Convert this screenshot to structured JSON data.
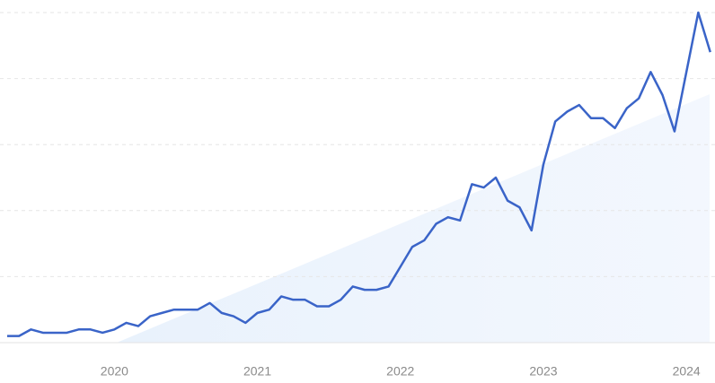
{
  "chart_data": {
    "type": "line",
    "x": [
      2019.25,
      2019.333,
      2019.417,
      2019.5,
      2019.583,
      2019.667,
      2019.75,
      2019.833,
      2019.917,
      2020,
      2020.083,
      2020.167,
      2020.25,
      2020.333,
      2020.417,
      2020.5,
      2020.583,
      2020.667,
      2020.75,
      2020.833,
      2020.917,
      2021,
      2021.083,
      2021.167,
      2021.25,
      2021.333,
      2021.417,
      2021.5,
      2021.583,
      2021.667,
      2021.75,
      2021.833,
      2021.917,
      2022,
      2022.083,
      2022.167,
      2022.25,
      2022.333,
      2022.417,
      2022.5,
      2022.583,
      2022.667,
      2022.75,
      2022.833,
      2022.917,
      2023,
      2023.083,
      2023.167,
      2023.25,
      2023.333,
      2023.417,
      2023.5,
      2023.583,
      2023.667,
      2023.75,
      2023.833,
      2023.917,
      2024,
      2024.083,
      2024.167
    ],
    "series": [
      {
        "color": "#3a64c8",
        "values": [
          2,
          2,
          4,
          3,
          3,
          3,
          4,
          4,
          3,
          4,
          6,
          5,
          8,
          9,
          10,
          10,
          10,
          12,
          9,
          8,
          6,
          9,
          10,
          14,
          13,
          13,
          11,
          11,
          13,
          17,
          16,
          16,
          17,
          23,
          29,
          31,
          36,
          38,
          37,
          48,
          47,
          50,
          43,
          41,
          34,
          54,
          67,
          70,
          72,
          68,
          68,
          65,
          71,
          74,
          82,
          75,
          64,
          82,
          100,
          88
        ]
      }
    ],
    "xlim": [
      2019.2,
      2024.2
    ],
    "xticks": [
      2020,
      2021,
      2022,
      2023,
      2024
    ],
    "ylim": [
      0,
      100
    ],
    "yticks": [
      0,
      20,
      40,
      60,
      80,
      100
    ],
    "grid": true
  }
}
